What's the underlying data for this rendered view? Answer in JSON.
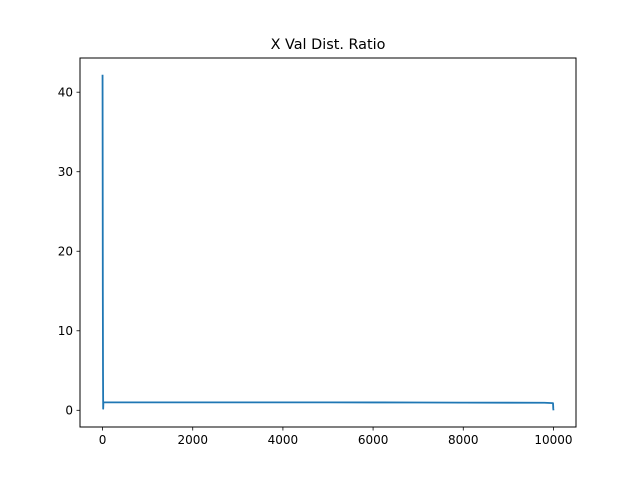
{
  "chart_data": {
    "type": "line",
    "title": "X Val Dist. Ratio",
    "xlabel": "",
    "ylabel": "",
    "xlim": [
      -500,
      10500
    ],
    "ylim": [
      -2.1,
      44.3
    ],
    "x_ticks": [
      0,
      2000,
      4000,
      6000,
      8000,
      10000
    ],
    "y_ticks": [
      0,
      10,
      20,
      30,
      40
    ],
    "grid": false,
    "series": [
      {
        "color": "#1f77b4",
        "x": [
          0,
          3,
          6,
          10,
          14,
          18,
          22,
          26,
          30,
          40,
          60,
          100,
          500,
          1000,
          2000,
          3000,
          4000,
          5000,
          6000,
          7000,
          8000,
          9000,
          9800,
          9990,
          9993,
          9996,
          10000
        ],
        "y": [
          42.2,
          30,
          15,
          5,
          0.2,
          0.9,
          1.0,
          1.0,
          1.0,
          1.0,
          1.0,
          1.0,
          1.0,
          1.0,
          1.0,
          1.0,
          1.0,
          1.0,
          0.99,
          0.98,
          0.97,
          0.96,
          0.95,
          0.9,
          0.6,
          0.2,
          0.0
        ]
      }
    ]
  }
}
